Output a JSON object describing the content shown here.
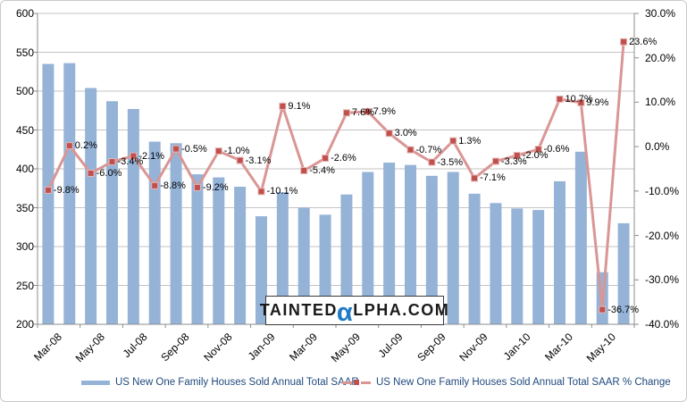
{
  "watermark": {
    "prefix": "TAINTED",
    "alpha": "α",
    "suffix": "LPHA.COM"
  },
  "colors": {
    "bar": "#95B3D7",
    "line": "#D99694",
    "marker": "#C0504D",
    "marker_edge": "#E6B9B8",
    "grid": "#C3C3C3",
    "axis": "#8C8C8C",
    "legend_text": "#1F497D",
    "watermark_alpha": "#1E7BC6"
  },
  "chart_data": {
    "type": "combo-bar-line",
    "title": "",
    "grid": true,
    "legend_position": "bottom",
    "categories": [
      "Mar-08",
      "Apr-08",
      "May-08",
      "Jun-08",
      "Jul-08",
      "Aug-08",
      "Sep-08",
      "Oct-08",
      "Nov-08",
      "Dec-08",
      "Jan-09",
      "Feb-09",
      "Mar-09",
      "Apr-09",
      "May-09",
      "Jun-09",
      "Jul-09",
      "Aug-09",
      "Sep-09",
      "Oct-09",
      "Nov-09",
      "Dec-09",
      "Jan-10",
      "Feb-10",
      "Mar-10",
      "Apr-10",
      "May-10",
      "Jun-10"
    ],
    "x_tick_labels": [
      "Mar-08",
      "May-08",
      "Jul-08",
      "Sep-08",
      "Nov-08",
      "Jan-09",
      "Mar-09",
      "May-09",
      "Jul-09",
      "Sep-09",
      "Nov-09",
      "Jan-10",
      "Mar-10",
      "May-10"
    ],
    "series": [
      {
        "name": "US New One Family Houses Sold Annual Total SAAR",
        "type": "bar",
        "axis": "left",
        "values": [
          535,
          536,
          504,
          487,
          477,
          435,
          433,
          393,
          389,
          377,
          339,
          370,
          350,
          341,
          367,
          396,
          408,
          405,
          391,
          396,
          368,
          356,
          349,
          347,
          384,
          422,
          267,
          330
        ]
      },
      {
        "name": "US New One Family Houses Sold Annual Total SAAR % Change",
        "type": "line",
        "axis": "right",
        "values": [
          -9.8,
          0.2,
          -6.0,
          -3.4,
          -2.1,
          -8.8,
          -0.5,
          -9.2,
          -1.0,
          -3.1,
          -10.1,
          9.1,
          -5.4,
          -2.6,
          7.6,
          7.9,
          3.0,
          -0.7,
          -3.5,
          1.3,
          -7.1,
          -3.3,
          -2.0,
          -0.6,
          10.7,
          9.9,
          -36.7,
          23.6
        ],
        "data_labels": [
          "-9.8%",
          "0.2%",
          "-6.0%",
          "-3.4%",
          "-2.1%",
          "-8.8%",
          "-0.5%",
          "-9.2%",
          "-1.0%",
          "-3.1%",
          "-10.1%",
          "9.1%",
          "-5.4%",
          "-2.6%",
          "7.6%",
          "7.9%",
          "3.0%",
          "-0.7%",
          "-3.5%",
          "1.3%",
          "-7.1%",
          "-3.3%",
          "-2.0%",
          "-0.6%",
          "10.7%",
          "9.9%",
          "-36.7%",
          "23.6%"
        ]
      }
    ],
    "left_axis": {
      "min": 200,
      "max": 600,
      "ticks": [
        "600",
        "550",
        "500",
        "450",
        "400",
        "350",
        "300",
        "250",
        "200"
      ]
    },
    "right_axis": {
      "min": -40,
      "max": 30,
      "ticks": [
        "30.0%",
        "20.0%",
        "10.0%",
        "0.0%",
        "-10.0%",
        "-20.0%",
        "-30.0%",
        "-40.0%"
      ]
    }
  }
}
